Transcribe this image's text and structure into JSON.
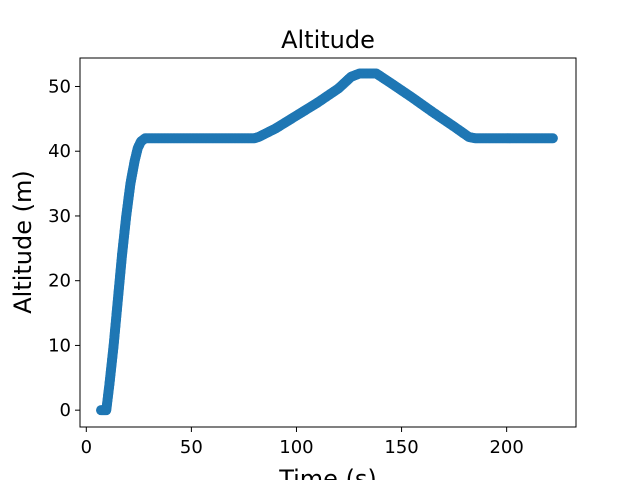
{
  "chart_data": {
    "type": "scatter",
    "title": "Altitude",
    "xlabel": "Time (s)",
    "ylabel": "Altitude (m)",
    "xlim": [
      -3,
      233
    ],
    "ylim": [
      -2.6,
      54.4
    ],
    "xticks": [
      0,
      50,
      100,
      150,
      200
    ],
    "yticks": [
      0,
      10,
      20,
      30,
      40,
      50
    ],
    "grid": false,
    "marker_color": "#1f77b4",
    "series": [
      {
        "points": [
          [
            7,
            0
          ],
          [
            9.5,
            0
          ],
          [
            11,
            4
          ],
          [
            13,
            10
          ],
          [
            15,
            17
          ],
          [
            17,
            24
          ],
          [
            19,
            30
          ],
          [
            21,
            35
          ],
          [
            23,
            38.5
          ],
          [
            24.5,
            40.5
          ],
          [
            26,
            41.5
          ],
          [
            28,
            42
          ],
          [
            40,
            42
          ],
          [
            60,
            42
          ],
          [
            80,
            42
          ],
          [
            82,
            42.2
          ],
          [
            90,
            43.5
          ],
          [
            100,
            45.5
          ],
          [
            110,
            47.5
          ],
          [
            120,
            49.7
          ],
          [
            126,
            51.5
          ],
          [
            130,
            52
          ],
          [
            138,
            52
          ],
          [
            145,
            50.5
          ],
          [
            155,
            48.3
          ],
          [
            165,
            46
          ],
          [
            175,
            43.8
          ],
          [
            182,
            42.2
          ],
          [
            185,
            42
          ],
          [
            200,
            42
          ],
          [
            215,
            42
          ],
          [
            222,
            42
          ]
        ]
      }
    ]
  }
}
